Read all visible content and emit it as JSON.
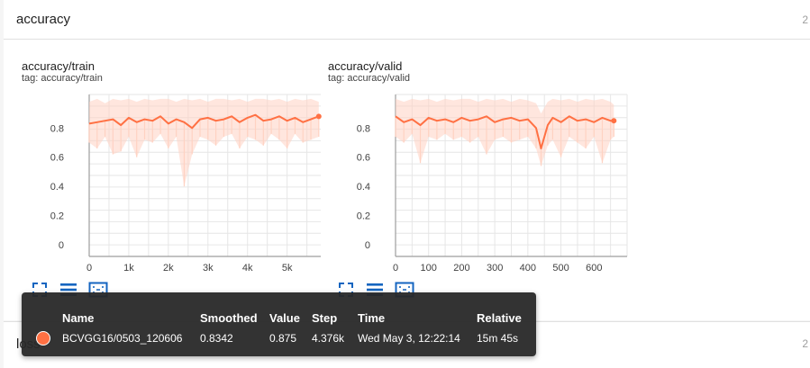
{
  "colors": {
    "series": "#ff7043",
    "series_raw": "#ffd2c2",
    "grid": "#e6e6e6",
    "axis": "#9e9e9e",
    "tooltip_bg": "#282828"
  },
  "sections": {
    "accuracy": {
      "title": "accuracy",
      "count": "2"
    },
    "loss": {
      "title": "loss",
      "count": "2"
    }
  },
  "cards": {
    "train": {
      "title": "accuracy/train",
      "tag_prefix": "tag:",
      "tag": "accuracy/train"
    },
    "valid": {
      "title": "accuracy/valid",
      "tag_prefix": "tag:",
      "tag": "accuracy/valid"
    }
  },
  "toolbar": {
    "icons": [
      "fit-to-screen-icon",
      "toggle-y-log-icon",
      "fit-domain-icon"
    ]
  },
  "chart_data": [
    {
      "type": "line",
      "title": "accuracy/train",
      "xlabel": "",
      "ylabel": "",
      "xlim": [
        0,
        5850
      ],
      "ylim": [
        -0.08,
        1.03
      ],
      "x_ticks": [
        0,
        1000,
        2000,
        3000,
        4000,
        5000
      ],
      "x_tick_labels": [
        "0",
        "1k",
        "2k",
        "3k",
        "4k",
        "5k"
      ],
      "y_ticks": [
        0,
        0.2,
        0.4,
        0.6,
        0.8
      ],
      "y_tick_labels": [
        "0",
        "0.2",
        "0.4",
        "0.6",
        "0.8"
      ],
      "grid": true,
      "series": [
        {
          "name": "BCVGG16/0503_120606",
          "smoothed": {
            "x": [
              0,
              200,
              400,
              600,
              800,
              1000,
              1200,
              1400,
              1600,
              1800,
              2000,
              2200,
              2400,
              2600,
              2800,
              3000,
              3200,
              3400,
              3600,
              3800,
              4000,
              4200,
              4400,
              4600,
              4800,
              5000,
              5200,
              5400,
              5600,
              5800
            ],
            "y": [
              0.83,
              0.84,
              0.85,
              0.86,
              0.82,
              0.87,
              0.84,
              0.86,
              0.85,
              0.88,
              0.83,
              0.86,
              0.84,
              0.8,
              0.86,
              0.87,
              0.85,
              0.86,
              0.88,
              0.84,
              0.87,
              0.89,
              0.85,
              0.86,
              0.88,
              0.85,
              0.87,
              0.84,
              0.86,
              0.88
            ]
          },
          "raw_min": {
            "x": [
              0,
              200,
              400,
              600,
              800,
              1000,
              1200,
              1400,
              1600,
              1800,
              2000,
              2200,
              2400,
              2600,
              2800,
              3000,
              3200,
              3400,
              3600,
              3800,
              4000,
              4200,
              4400,
              4600,
              4800,
              5000,
              5200,
              5400,
              5600,
              5800
            ],
            "y": [
              0.7,
              0.66,
              0.74,
              0.62,
              0.64,
              0.74,
              0.6,
              0.72,
              0.7,
              0.76,
              0.66,
              0.74,
              0.4,
              0.62,
              0.74,
              0.72,
              0.68,
              0.74,
              0.76,
              0.66,
              0.74,
              0.72,
              0.68,
              0.76,
              0.72,
              0.66,
              0.76,
              0.7,
              0.72,
              0.74
            ]
          },
          "raw_max": {
            "x": [
              0,
              200,
              400,
              600,
              800,
              1000,
              1200,
              1400,
              1600,
              1800,
              2000,
              2200,
              2400,
              2600,
              2800,
              3000,
              3200,
              3400,
              3600,
              3800,
              4000,
              4200,
              4400,
              4600,
              4800,
              5000,
              5200,
              5400,
              5600,
              5800
            ],
            "y": [
              0.98,
              1.0,
              0.97,
              1.0,
              0.99,
              1.0,
              0.98,
              1.0,
              0.99,
              1.0,
              1.0,
              0.98,
              1.0,
              0.99,
              1.0,
              0.98,
              1.0,
              1.0,
              0.99,
              1.0,
              0.98,
              1.0,
              1.0,
              0.99,
              1.0,
              0.98,
              1.0,
              0.99,
              1.0,
              0.98
            ]
          }
        }
      ]
    },
    {
      "type": "line",
      "title": "accuracy/valid",
      "xlabel": "",
      "ylabel": "",
      "xlim": [
        0,
        700
      ],
      "ylim": [
        -0.08,
        1.03
      ],
      "x_ticks": [
        0,
        100,
        200,
        300,
        400,
        500,
        600
      ],
      "x_tick_labels": [
        "0",
        "100",
        "200",
        "300",
        "400",
        "500",
        "600"
      ],
      "y_ticks": [
        0,
        0.2,
        0.4,
        0.6,
        0.8
      ],
      "y_tick_labels": [
        "0",
        "0.2",
        "0.4",
        "0.6",
        "0.8"
      ],
      "grid": true,
      "series": [
        {
          "name": "BCVGG16/0503_120606",
          "smoothed": {
            "x": [
              0,
              25,
              50,
              75,
              100,
              125,
              150,
              175,
              200,
              225,
              250,
              275,
              300,
              325,
              350,
              375,
              400,
              425,
              440,
              460,
              475,
              500,
              525,
              550,
              575,
              600,
              625,
              650,
              660
            ],
            "y": [
              0.88,
              0.84,
              0.86,
              0.82,
              0.87,
              0.85,
              0.86,
              0.84,
              0.87,
              0.85,
              0.86,
              0.88,
              0.84,
              0.86,
              0.87,
              0.85,
              0.86,
              0.8,
              0.66,
              0.82,
              0.87,
              0.84,
              0.88,
              0.85,
              0.86,
              0.84,
              0.87,
              0.85,
              0.85
            ]
          },
          "raw_min": {
            "x": [
              0,
              25,
              50,
              75,
              100,
              125,
              150,
              175,
              200,
              225,
              250,
              275,
              300,
              325,
              350,
              375,
              400,
              425,
              440,
              460,
              475,
              500,
              525,
              550,
              575,
              600,
              625,
              650,
              660
            ],
            "y": [
              0.74,
              0.7,
              0.76,
              0.56,
              0.74,
              0.72,
              0.76,
              0.72,
              0.74,
              0.7,
              0.74,
              0.62,
              0.72,
              0.74,
              0.7,
              0.72,
              0.74,
              0.66,
              0.54,
              0.68,
              0.72,
              0.6,
              0.74,
              0.7,
              0.66,
              0.74,
              0.56,
              0.72,
              0.74
            ]
          },
          "raw_max": {
            "x": [
              0,
              25,
              50,
              75,
              100,
              125,
              150,
              175,
              200,
              225,
              250,
              275,
              300,
              325,
              350,
              375,
              400,
              425,
              440,
              460,
              475,
              500,
              525,
              550,
              575,
              600,
              625,
              650,
              660
            ],
            "y": [
              1.0,
              0.98,
              1.0,
              0.99,
              1.0,
              0.98,
              1.0,
              0.99,
              1.0,
              1.0,
              0.98,
              1.0,
              0.99,
              1.0,
              0.98,
              1.0,
              0.99,
              0.97,
              0.9,
              0.98,
              1.0,
              0.99,
              1.0,
              0.98,
              1.0,
              0.99,
              1.0,
              0.98,
              0.96
            ]
          }
        }
      ]
    }
  ],
  "tooltip": {
    "headers": {
      "name": "Name",
      "smoothed": "Smoothed",
      "value": "Value",
      "step": "Step",
      "time": "Time",
      "relative": "Relative"
    },
    "row": {
      "name": "BCVGG16/0503_120606",
      "smoothed": "0.8342",
      "value": "0.875",
      "step": "4.376k",
      "time": "Wed May 3, 12:22:14",
      "relative": "15m 45s"
    }
  }
}
